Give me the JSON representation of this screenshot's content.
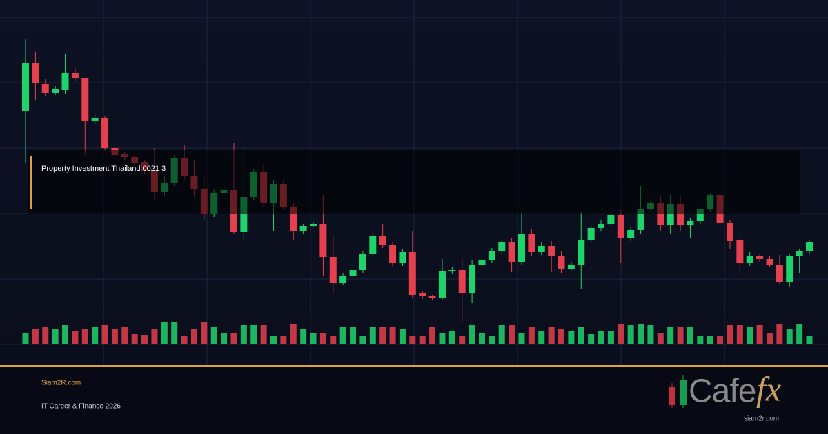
{
  "chart_data": {
    "type": "candlestick",
    "label": "Property Investment Thailand 0021 3",
    "up_color": "#1fd36b",
    "down_color": "#e5404e",
    "ylim": [
      0,
      500
    ],
    "vlim": [
      0,
      100
    ],
    "open": [
      369,
      439,
      408,
      395,
      400,
      424,
      417,
      354,
      358,
      315,
      306,
      302,
      295,
      282,
      252,
      265,
      301,
      275,
      256,
      220,
      250,
      254,
      193,
      244,
      281,
      235,
      263,
      229,
      195,
      202,
      205,
      157,
      119,
      130,
      138,
      161,
      188,
      174,
      148,
      164,
      104,
      100,
      98,
      136,
      138,
      104,
      145,
      152,
      166,
      178,
      149,
      190,
      164,
      173,
      158,
      140,
      146,
      181,
      199,
      205,
      218,
      185,
      196,
      227,
      235,
      203,
      234,
      203,
      209,
      226,
      247,
      206,
      181,
      148,
      159,
      154,
      146,
      120,
      159,
      165
    ],
    "high": [
      473,
      455,
      415,
      405,
      452,
      432,
      417,
      365,
      362,
      318,
      310,
      305,
      298,
      315,
      275,
      305,
      320,
      298,
      274,
      255,
      260,
      323,
      315,
      285,
      290,
      268,
      268,
      235,
      205,
      208,
      247,
      188,
      133,
      142,
      165,
      192,
      205,
      178,
      168,
      195,
      108,
      102,
      154,
      142,
      155,
      152,
      155,
      170,
      182,
      185,
      222,
      197,
      178,
      180,
      165,
      150,
      222,
      204,
      210,
      222,
      225,
      200,
      260,
      238,
      245,
      248,
      245,
      213,
      230,
      250,
      257,
      210,
      185,
      164,
      162,
      158,
      160,
      162,
      168,
      182
    ],
    "low": [
      293,
      385,
      390,
      392,
      393,
      412,
      305,
      350,
      312,
      302,
      298,
      290,
      278,
      240,
      245,
      260,
      268,
      244,
      212,
      215,
      245,
      190,
      180,
      240,
      230,
      195,
      225,
      182,
      190,
      200,
      130,
      105,
      117,
      115,
      133,
      158,
      170,
      144,
      144,
      98,
      96,
      94,
      94,
      132,
      63,
      90,
      142,
      148,
      162,
      135,
      145,
      158,
      160,
      135,
      134,
      137,
      110,
      178,
      195,
      202,
      148,
      180,
      190,
      224,
      195,
      190,
      195,
      184,
      205,
      222,
      200,
      168,
      134,
      144,
      150,
      142,
      118,
      114,
      134,
      162
    ],
    "close": [
      439,
      409,
      395,
      401,
      424,
      417,
      354,
      358,
      315,
      305,
      302,
      294,
      282,
      252,
      265,
      301,
      275,
      256,
      220,
      250,
      254,
      193,
      244,
      281,
      235,
      263,
      229,
      195,
      202,
      205,
      157,
      119,
      130,
      138,
      161,
      188,
      174,
      148,
      164,
      102,
      100,
      97,
      137,
      138,
      104,
      146,
      152,
      166,
      178,
      149,
      190,
      164,
      173,
      158,
      140,
      146,
      181,
      199,
      205,
      218,
      185,
      196,
      227,
      235,
      203,
      234,
      203,
      209,
      226,
      247,
      206,
      180,
      148,
      159,
      154,
      146,
      120,
      159,
      165,
      178
    ],
    "volume": [
      17,
      22,
      25,
      22,
      28,
      20,
      22,
      25,
      28,
      22,
      25,
      15,
      14,
      22,
      32,
      32,
      12,
      22,
      32,
      25,
      17,
      17,
      28,
      28,
      28,
      12,
      12,
      30,
      22,
      17,
      17,
      12,
      25,
      25,
      12,
      25,
      25,
      25,
      22,
      12,
      12,
      25,
      17,
      20,
      12,
      28,
      17,
      12,
      28,
      28,
      17,
      25,
      20,
      25,
      22,
      20,
      25,
      15,
      20,
      20,
      30,
      28,
      30,
      28,
      17,
      25,
      25,
      25,
      12,
      12,
      12,
      28,
      28,
      25,
      28,
      17,
      30,
      22,
      30,
      12
    ]
  },
  "footer": {
    "site": "Siam2R.com",
    "tagline": "IT Career & Finance 2026"
  },
  "logo": {
    "word": "Cafe",
    "accent": "fx",
    "caption": "siam2r.com"
  }
}
